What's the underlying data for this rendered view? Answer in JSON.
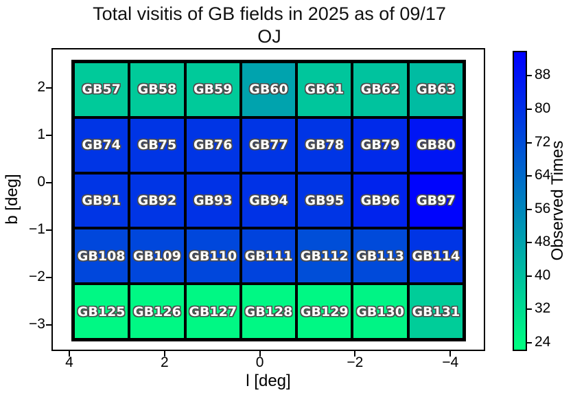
{
  "title": {
    "line1": "Total visitis of GB fields in 2025 as of 09/17",
    "line2": "OJ"
  },
  "axes": {
    "xlabel": "l [deg]",
    "ylabel": "b [deg]",
    "x_tick_labels": [
      "4",
      "2",
      "0",
      "−2",
      "−4"
    ],
    "y_tick_labels": [
      "2",
      "1",
      "0",
      "−1",
      "−2",
      "−3"
    ]
  },
  "colorbar": {
    "label": "Observed Times",
    "tick_values": [
      24,
      32,
      40,
      48,
      56,
      64,
      72,
      80,
      88
    ],
    "vmin": 22,
    "vmax": 94,
    "color_low": "#00ff80",
    "color_high": "#0000ff"
  },
  "chart_data": {
    "type": "heatmap",
    "title": "Total visitis of GB fields in 2025 as of 09/17 OJ",
    "xlabel": "l [deg]",
    "ylabel": "b [deg]",
    "x_axis_inverted": true,
    "x_tick_values": [
      4,
      2,
      0,
      -2,
      -4
    ],
    "y_tick_values": [
      2,
      1,
      0,
      -1,
      -2,
      -3
    ],
    "colormap": "winter_r",
    "value_label": "Observed Times",
    "value_range": [
      22,
      94
    ],
    "rows": [
      {
        "fields": [
          "GB57",
          "GB58",
          "GB59",
          "GB60",
          "GB61",
          "GB62",
          "GB63"
        ],
        "values": [
          37,
          37,
          37,
          48,
          38,
          39,
          41
        ]
      },
      {
        "fields": [
          "GB74",
          "GB75",
          "GB76",
          "GB77",
          "GB78",
          "GB79",
          "GB80"
        ],
        "values": [
          79,
          79,
          79,
          79,
          79,
          82,
          88
        ]
      },
      {
        "fields": [
          "GB91",
          "GB92",
          "GB93",
          "GB94",
          "GB95",
          "GB96",
          "GB97"
        ],
        "values": [
          79,
          79,
          80,
          80,
          79,
          84,
          93
        ]
      },
      {
        "fields": [
          "GB108",
          "GB109",
          "GB110",
          "GB111",
          "GB112",
          "GB113",
          "GB114"
        ],
        "values": [
          74,
          74,
          74,
          75,
          72,
          73,
          79
        ]
      },
      {
        "fields": [
          "GB125",
          "GB126",
          "GB127",
          "GB128",
          "GB129",
          "GB130",
          "GB131"
        ],
        "values": [
          24,
          24,
          24,
          24,
          24,
          25,
          36
        ]
      }
    ]
  }
}
